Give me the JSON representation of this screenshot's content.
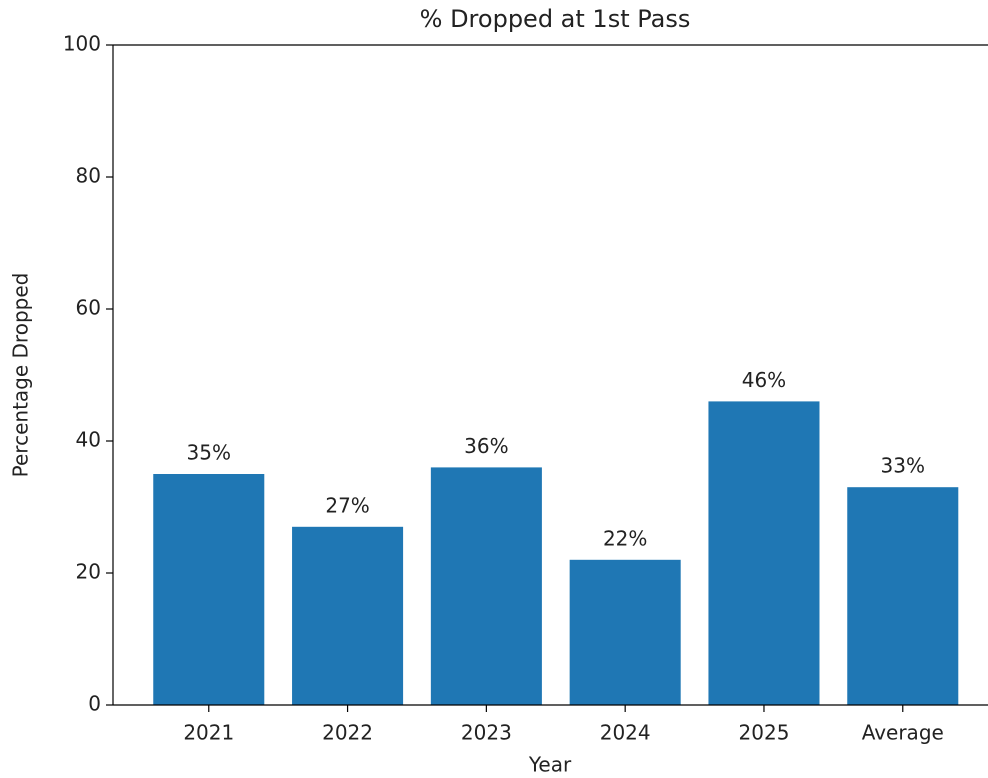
{
  "chart_data": {
    "type": "bar",
    "title": "% Dropped at 1st Pass",
    "x_label": "Year",
    "y_label": "Percentage Dropped",
    "categories": [
      "2021",
      "2022",
      "2023",
      "2024",
      "2025",
      "Average"
    ],
    "values": [
      35,
      27,
      36,
      22,
      46,
      33
    ],
    "value_labels": [
      "35%",
      "27%",
      "36%",
      "22%",
      "46%",
      "33%"
    ],
    "color": "#1f77b4",
    "ylim": [
      0,
      100
    ],
    "yticks": [
      0,
      20,
      40,
      60,
      80,
      100
    ]
  }
}
